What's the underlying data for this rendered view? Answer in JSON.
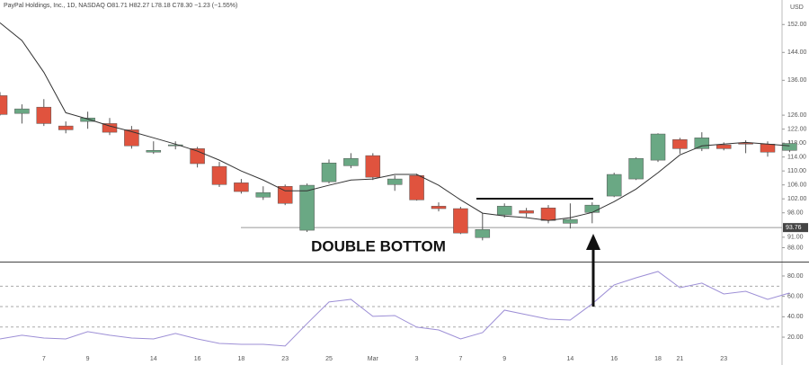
{
  "chart_data": [
    {
      "type": "candlestick",
      "title": "PayPal Holdings, Inc., 1D, NASDAQ  O81.71  H82.27  L78.18  C78.30  −1.23 (−1.55%)",
      "y_unit": "USD",
      "annotation": "DOUBLE BOTTOM",
      "categories": [
        null,
        null,
        "7",
        null,
        "9",
        null,
        null,
        "14",
        null,
        "16",
        null,
        "18",
        null,
        "23",
        null,
        "25",
        null,
        "Mar",
        null,
        "3",
        null,
        "7",
        null,
        "9",
        null,
        null,
        "14",
        null,
        "16",
        null,
        "18",
        "21",
        null,
        "23",
        null,
        null,
        null
      ],
      "open": [
        131.6,
        126.5,
        128.3,
        122.9,
        124.2,
        123.6,
        121.8,
        115.4,
        117.2,
        116.4,
        111.3,
        106.6,
        102.5,
        105.6,
        93.0,
        106.9,
        111.5,
        114.4,
        106.1,
        108.7,
        99.9,
        99.2,
        90.9,
        97.4,
        98.6,
        99.4,
        95.0,
        98.1,
        102.8,
        107.7,
        113.1,
        119.0,
        116.4,
        117.5,
        118.0,
        117.7,
        115.9
      ],
      "high": [
        132.6,
        129.1,
        130.6,
        124.2,
        127.0,
        125.2,
        122.9,
        118.5,
        118.5,
        116.9,
        112.6,
        107.7,
        105.6,
        106.1,
        106.4,
        113.3,
        115.1,
        115.1,
        108.7,
        109.2,
        101.0,
        99.7,
        97.9,
        100.7,
        99.4,
        100.2,
        100.7,
        101.0,
        109.5,
        113.9,
        120.8,
        119.5,
        121.1,
        118.2,
        118.8,
        118.5,
        118.8
      ],
      "low": [
        125.9,
        123.6,
        122.9,
        120.8,
        122.1,
        120.3,
        116.4,
        114.9,
        116.2,
        111.0,
        105.4,
        103.5,
        101.7,
        100.2,
        92.5,
        106.4,
        110.8,
        107.4,
        104.3,
        101.5,
        98.4,
        91.9,
        90.1,
        96.6,
        96.8,
        95.0,
        93.5,
        95.0,
        102.5,
        107.4,
        112.6,
        114.9,
        115.7,
        115.9,
        115.1,
        114.1,
        115.4
      ],
      "close": [
        126.2,
        127.8,
        123.6,
        121.8,
        125.2,
        121.1,
        117.2,
        115.9,
        117.5,
        112.1,
        106.1,
        104.1,
        103.8,
        100.7,
        105.9,
        112.3,
        113.6,
        108.2,
        107.7,
        101.7,
        99.2,
        92.2,
        93.2,
        99.9,
        97.9,
        95.8,
        96.1,
        100.2,
        109.0,
        113.6,
        120.6,
        116.4,
        119.5,
        116.4,
        117.7,
        115.4,
        117.9
      ],
      "up_color": "#6aa884",
      "down_color": "#e0533e",
      "ma": {
        "color": "#333333",
        "values": [
          152.5,
          147.4,
          138.3,
          126.7,
          124.9,
          122.9,
          121.3,
          119.5,
          117.7,
          115.7,
          113.1,
          110.0,
          107.4,
          104.3,
          104.3,
          105.9,
          107.4,
          107.7,
          109.0,
          109.0,
          105.9,
          101.7,
          97.9,
          97.1,
          96.6,
          95.8,
          96.6,
          98.1,
          101.2,
          104.8,
          109.5,
          114.6,
          117.2,
          117.7,
          118.2,
          117.7,
          117.2
        ]
      },
      "price_line": {
        "value": 93.76,
        "label": "93.76"
      },
      "ylim": [
        84,
        158
      ],
      "yticks": [
        {
          "value": 152,
          "label": "152.00"
        },
        {
          "value": 144,
          "label": "144.00"
        },
        {
          "value": 136,
          "label": "136.00"
        },
        {
          "value": 126,
          "label": "126.00"
        },
        {
          "value": 122,
          "label": "122.00"
        },
        {
          "value": 118,
          "label": "118.00"
        },
        {
          "value": 114,
          "label": "114.00"
        },
        {
          "value": 110,
          "label": "110.00"
        },
        {
          "value": 106,
          "label": "106.00"
        },
        {
          "value": 102,
          "label": "102.00"
        },
        {
          "value": 98,
          "label": "98.00"
        },
        {
          "value": 91,
          "label": "91.00"
        },
        {
          "value": 88,
          "label": "88.00"
        }
      ]
    },
    {
      "type": "line",
      "color": "#9d8fd6",
      "values": [
        18.3,
        21.9,
        19.2,
        18.3,
        25.4,
        21.9,
        19.2,
        18.3,
        23.6,
        18.3,
        13.9,
        13.0,
        13.0,
        11.3,
        33.3,
        54.5,
        57.1,
        40.4,
        41.2,
        29.8,
        27.1,
        18.3,
        24.5,
        46.5,
        42.1,
        37.7,
        36.8,
        52.7,
        71.2,
        78.2,
        84.4,
        68.5,
        73.0,
        62.4,
        65.0,
        57.1,
        63.3
      ],
      "levels": [
        70,
        50,
        30
      ],
      "ylim": [
        -7.3,
        93.2
      ],
      "yticks": [
        {
          "value": 80,
          "label": "80.00"
        },
        {
          "value": 60,
          "label": "60.00"
        },
        {
          "value": 40,
          "label": "40.00"
        },
        {
          "value": 20,
          "label": "20.00"
        }
      ]
    }
  ]
}
